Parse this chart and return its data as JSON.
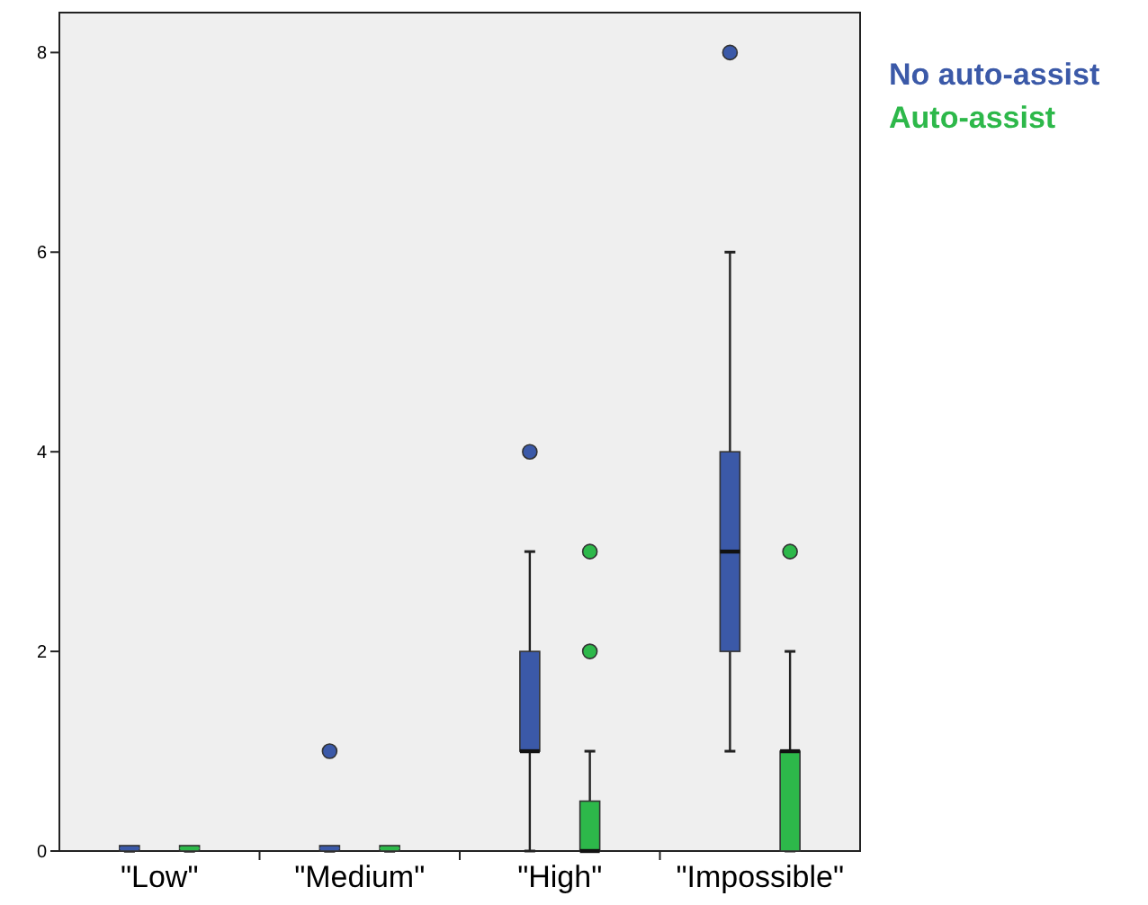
{
  "chart_data": {
    "type": "box",
    "categories": [
      "\"Low\"",
      "\"Medium\"",
      "\"High\"",
      "\"Impossible\""
    ],
    "ylim": [
      0,
      8.4
    ],
    "yticks": [
      0,
      2,
      4,
      6,
      8
    ],
    "grid": false,
    "legend": "top right",
    "series": [
      {
        "name": "No auto-assist",
        "color": "#3b59a8",
        "boxes": [
          {
            "low": 0,
            "q1": 0,
            "median": 0,
            "q3": 0,
            "high": 0
          },
          {
            "low": 0,
            "q1": 0,
            "median": 0,
            "q3": 0,
            "high": 0,
            "outliers": [
              1
            ]
          },
          {
            "low": 0,
            "q1": 1,
            "median": 1,
            "q3": 2,
            "high": 3,
            "outliers": [
              4
            ]
          },
          {
            "low": 1,
            "q1": 2,
            "median": 3,
            "q3": 4,
            "high": 6,
            "outliers": [
              8
            ]
          }
        ]
      },
      {
        "name": "Auto-assist",
        "color": "#2db84a",
        "boxes": [
          {
            "low": 0,
            "q1": 0,
            "median": 0,
            "q3": 0,
            "high": 0
          },
          {
            "low": 0,
            "q1": 0,
            "median": 0,
            "q3": 0,
            "high": 0
          },
          {
            "low": 0,
            "q1": 0,
            "median": 0,
            "q3": 0.5,
            "high": 1,
            "outliers": [
              2,
              3
            ]
          },
          {
            "low": 0,
            "q1": 0,
            "median": 1,
            "q3": 1,
            "high": 2,
            "outliers": [
              3
            ]
          }
        ]
      }
    ]
  }
}
